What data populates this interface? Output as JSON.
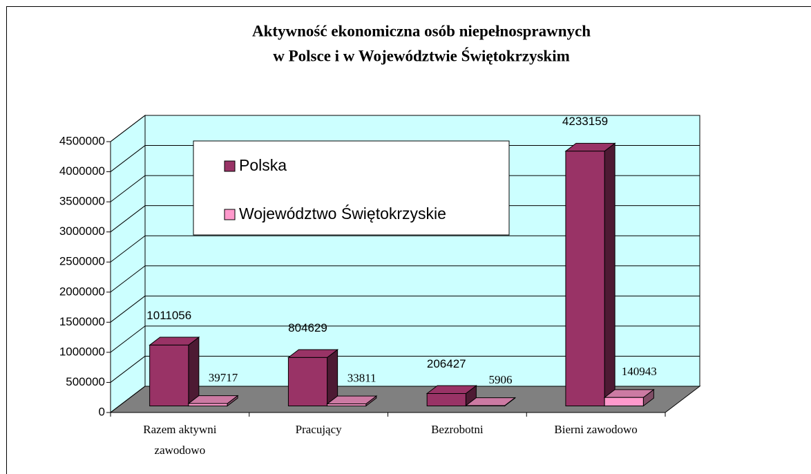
{
  "chart_data": {
    "type": "bar",
    "title": [
      "Aktywność ekonomiczna osób niepełnosprawnych",
      "w Polsce i w Województwie Świętokrzyskim"
    ],
    "categories": [
      "Razem aktywni zawodowo",
      "Pracujący",
      "Bezrobotni",
      "Bierni zawodowo"
    ],
    "series": [
      {
        "name": "Polska",
        "color": "#993366",
        "values": [
          1011056,
          804629,
          206427,
          4233159
        ]
      },
      {
        "name": "Województwo Świętokrzyskie",
        "color": "#ff99cc",
        "values": [
          39717,
          33811,
          5906,
          140943
        ]
      }
    ],
    "ylim": [
      0,
      4500000
    ],
    "yticks": [
      0,
      500000,
      1000000,
      1500000,
      2000000,
      2500000,
      3000000,
      3500000,
      4000000,
      4500000
    ],
    "grid": true,
    "legend": "top-left"
  }
}
